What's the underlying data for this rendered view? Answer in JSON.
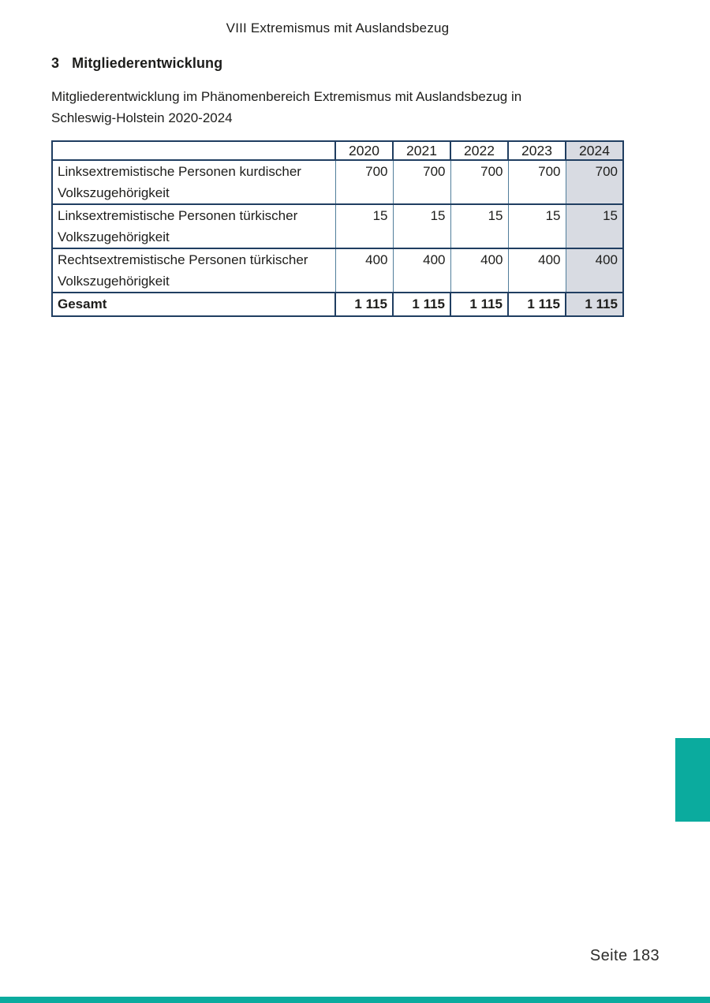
{
  "page": {
    "running_header": "VIII Extremismus mit Auslandsbezug",
    "section_number": "3",
    "section_title": "Mitgliederentwicklung",
    "intro_lines": [
      "Mitgliederentwicklung im Phänomenbereich Extremismus mit Auslandsbezug in",
      "Schleswig-Holstein 2020-2024"
    ],
    "page_label": "Seite 183"
  },
  "table": {
    "years": [
      "2020",
      "2021",
      "2022",
      "2023",
      "2024"
    ],
    "rows": [
      {
        "label_line1": "Linksextremistische Personen kurdischer",
        "label_line2": "Volkszugehörigkeit",
        "values": [
          "700",
          "700",
          "700",
          "700",
          "700"
        ]
      },
      {
        "label_line1": "Linksextremistische Personen türkischer",
        "label_line2": "Volkszugehörigkeit",
        "values": [
          "15",
          "15",
          "15",
          "15",
          "15"
        ]
      },
      {
        "label_line1": "Rechtsextremistische Personen türkischer",
        "label_line2": "Volkszugehörigkeit",
        "values": [
          "400",
          "400",
          "400",
          "400",
          "400"
        ]
      }
    ],
    "total_row": {
      "label": "Gesamt",
      "values": [
        "1 115",
        "1 115",
        "1 115",
        "1 115",
        "1 115"
      ]
    },
    "highlighted_year": "2024"
  },
  "colors": {
    "accent_teal": "#0bab9e",
    "table_border_navy": "#203e61",
    "table_grid_light": "#517e9b",
    "highlight_column_bg": "#d8dbe2"
  }
}
